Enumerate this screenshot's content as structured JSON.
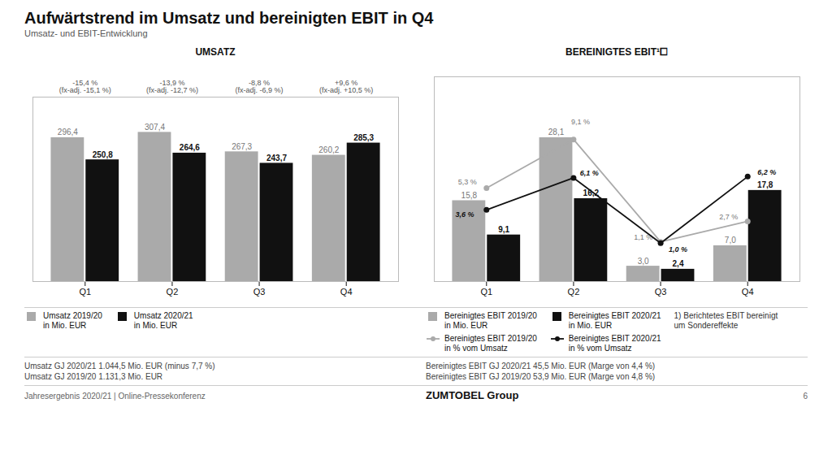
{
  "title": "Aufwärtstrend im Umsatz und bereinigten EBIT in Q4",
  "subtitle": "Umsatz- und EBIT-Entwicklung",
  "footer": [
    "Jahresergebnis 2020/21 | Online-Pressekonferenz",
    "ZUMTOBEL Group",
    "6"
  ],
  "chart_data": [
    {
      "type": "bar",
      "title": "UMSATZ",
      "categories": [
        "Q1",
        "Q2",
        "Q3",
        "Q4"
      ],
      "series": [
        {
          "name": "Umsatz 2019/20\nin Mio. EUR",
          "color": "#aaaaaa",
          "values": [
            296.4,
            307.4,
            267.3,
            260.2
          ],
          "value_labels": [
            "296,4",
            "307,4",
            "267,3",
            "260,2"
          ]
        },
        {
          "name": "Umsatz 2020/21\nin Mio. EUR",
          "color": "#111111",
          "values": [
            250.8,
            264.6,
            243.7,
            285.3
          ],
          "value_labels": [
            "250,8",
            "264,6",
            "243,7",
            "285,3"
          ]
        }
      ],
      "ylim": [
        0,
        380
      ],
      "tick_labels": "x",
      "data_labels": true,
      "legend": "bottom",
      "annotations": [
        {
          "x": "Q1",
          "text": "-15,4 %\n(fx-adj. -15,1 %)"
        },
        {
          "x": "Q2",
          "text": "-13,9 %\n(fx-adj. -12,7 %)"
        },
        {
          "x": "Q3",
          "text": "-8,8 %\n(fx-adj. -6,9 %)"
        },
        {
          "x": "Q4",
          "text": "+9,6 %\n(fx-adj. +10,5 %)"
        }
      ],
      "notes": [
        "Umsatz GJ 2020/21 1.044,5 Mio. EUR (minus 7,7 %)",
        "Umsatz GJ 2019/20 1.131,3 Mio. EUR"
      ]
    },
    {
      "type": "bar",
      "title": "BEREINIGTES EBIT¹⧠",
      "categories": [
        "Q1",
        "Q2",
        "Q3",
        "Q4"
      ],
      "series": [
        {
          "name": "Bereinigtes EBIT 2019/20\nin Mio. EUR",
          "type": "bar",
          "color": "#aaaaaa",
          "values": [
            15.8,
            28.1,
            3.0,
            7.0
          ],
          "value_labels": [
            "15,8",
            "28,1",
            "3,0",
            "7,0"
          ]
        },
        {
          "name": "Bereinigtes EBIT 2020/21\nin Mio. EUR",
          "type": "bar",
          "color": "#111111",
          "values": [
            9.1,
            16.2,
            2.4,
            17.8
          ],
          "value_labels": [
            "9,1",
            "16,2",
            "2,4",
            "17,8"
          ]
        },
        {
          "name": "Bereinigtes EBIT 2019/20\nin % vom Umsatz",
          "type": "line",
          "axis": "y2",
          "marker": "circle",
          "color": "#aaaaaa",
          "values": [
            5.3,
            9.1,
            1.1,
            2.7
          ],
          "value_labels": [
            "5,3 %",
            "9,1 %",
            "1,1 %",
            "2,7 %"
          ]
        },
        {
          "name": "Bereinigtes EBIT 2020/21\nin % vom Umsatz",
          "type": "line",
          "axis": "y2",
          "marker": "circle",
          "color": "#111111",
          "values": [
            3.6,
            6.1,
            1.0,
            6.2
          ],
          "value_labels": [
            "3,6 %",
            "6,1 %",
            "1,0 %",
            "6,2 %"
          ]
        }
      ],
      "ylim": [
        0,
        40
      ],
      "y2lim": [
        -2,
        14
      ],
      "tick_labels": "x",
      "data_labels": true,
      "legend": "bottom",
      "footnote": "1) Berichtetes EBIT bereinigt\num Sondereffekte",
      "notes": [
        "Bereinigtes EBIT GJ 2020/21 45,5 Mio. EUR (Marge von 4,4 %)",
        "Bereinigtes EBIT GJ 2019/20 53,9 Mio. EUR (Marge von 4,8 %)"
      ]
    }
  ]
}
